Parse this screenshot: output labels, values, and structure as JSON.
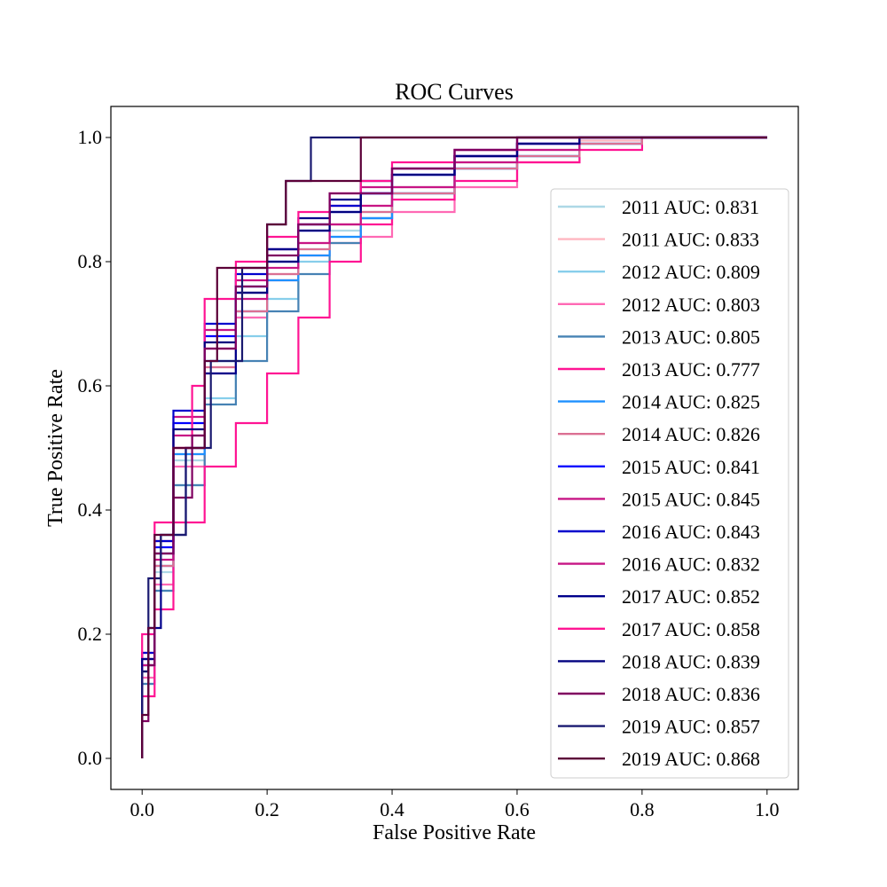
{
  "chart_data": {
    "type": "line",
    "title": "ROC Curves",
    "xlabel": "False Positive Rate",
    "ylabel": "True Positive Rate",
    "xlim": [
      -0.05,
      1.05
    ],
    "ylim": [
      -0.05,
      1.05
    ],
    "xticks": [
      "0.0",
      "0.2",
      "0.4",
      "0.6",
      "0.8",
      "1.0"
    ],
    "yticks": [
      "0.0",
      "0.2",
      "0.4",
      "0.6",
      "0.8",
      "1.0"
    ],
    "grid": false,
    "legend_position": "lower right",
    "series": [
      {
        "name": "2011 AUC: 0.831",
        "color": "#add8e6",
        "x": [
          0,
          0.02,
          0.05,
          0.1,
          0.15,
          0.2,
          0.25,
          0.3,
          0.35,
          0.4,
          0.5,
          0.6,
          0.7,
          0.8,
          1.0
        ],
        "y": [
          0,
          0.15,
          0.3,
          0.48,
          0.62,
          0.71,
          0.77,
          0.82,
          0.85,
          0.88,
          0.92,
          0.96,
          0.98,
          0.995,
          1.0
        ]
      },
      {
        "name": "2011 AUC: 0.833",
        "color": "#ffb6c1",
        "x": [
          0,
          0.02,
          0.05,
          0.1,
          0.15,
          0.2,
          0.25,
          0.3,
          0.35,
          0.4,
          0.5,
          0.6,
          0.7,
          0.8,
          1.0
        ],
        "y": [
          0,
          0.16,
          0.31,
          0.49,
          0.63,
          0.72,
          0.78,
          0.83,
          0.86,
          0.89,
          0.92,
          0.96,
          0.98,
          0.995,
          1.0
        ]
      },
      {
        "name": "2012 AUC: 0.809",
        "color": "#87ceeb",
        "x": [
          0,
          0.02,
          0.05,
          0.1,
          0.15,
          0.2,
          0.25,
          0.3,
          0.35,
          0.4,
          0.5,
          0.6,
          0.7,
          0.8,
          1.0
        ],
        "y": [
          0,
          0.12,
          0.27,
          0.44,
          0.58,
          0.68,
          0.74,
          0.8,
          0.84,
          0.87,
          0.91,
          0.95,
          0.97,
          0.99,
          1.0
        ]
      },
      {
        "name": "2012 AUC: 0.803",
        "color": "#ff69b4",
        "x": [
          0,
          0.02,
          0.05,
          0.1,
          0.15,
          0.2,
          0.25,
          0.3,
          0.35,
          0.4,
          0.5,
          0.6,
          0.7,
          0.8,
          1.0
        ],
        "y": [
          0,
          0.13,
          0.28,
          0.47,
          0.62,
          0.71,
          0.77,
          0.81,
          0.83,
          0.84,
          0.88,
          0.92,
          0.96,
          0.99,
          1.0
        ]
      },
      {
        "name": "2013 AUC: 0.805",
        "color": "#4682b4",
        "x": [
          0,
          0.02,
          0.05,
          0.1,
          0.15,
          0.2,
          0.25,
          0.3,
          0.35,
          0.4,
          0.5,
          0.6,
          0.7,
          0.8,
          1.0
        ],
        "y": [
          0,
          0.12,
          0.27,
          0.44,
          0.57,
          0.64,
          0.72,
          0.78,
          0.83,
          0.87,
          0.91,
          0.95,
          0.97,
          0.99,
          1.0
        ]
      },
      {
        "name": "2013 AUC: 0.777",
        "color": "#ff1493",
        "x": [
          0,
          0.02,
          0.05,
          0.1,
          0.15,
          0.2,
          0.25,
          0.3,
          0.35,
          0.4,
          0.5,
          0.6,
          0.7,
          0.8,
          0.92,
          1.0
        ],
        "y": [
          0,
          0.1,
          0.24,
          0.38,
          0.47,
          0.54,
          0.62,
          0.71,
          0.8,
          0.86,
          0.9,
          0.93,
          0.96,
          0.98,
          1.0,
          1.0
        ]
      },
      {
        "name": "2014 AUC: 0.825",
        "color": "#1e90ff",
        "x": [
          0,
          0.02,
          0.05,
          0.1,
          0.15,
          0.2,
          0.25,
          0.3,
          0.35,
          0.4,
          0.5,
          0.6,
          0.7,
          0.8,
          1.0
        ],
        "y": [
          0,
          0.15,
          0.31,
          0.49,
          0.64,
          0.72,
          0.77,
          0.81,
          0.84,
          0.87,
          0.91,
          0.95,
          0.97,
          0.99,
          1.0
        ]
      },
      {
        "name": "2014 AUC: 0.826",
        "color": "#db7093",
        "x": [
          0,
          0.02,
          0.05,
          0.1,
          0.15,
          0.2,
          0.25,
          0.3,
          0.35,
          0.4,
          0.5,
          0.6,
          0.7,
          0.8,
          1.0
        ],
        "y": [
          0,
          0.15,
          0.31,
          0.5,
          0.63,
          0.72,
          0.78,
          0.82,
          0.86,
          0.88,
          0.91,
          0.95,
          0.97,
          0.99,
          1.0
        ]
      },
      {
        "name": "2015 AUC: 0.841",
        "color": "#0000ff",
        "x": [
          0,
          0.02,
          0.05,
          0.1,
          0.15,
          0.2,
          0.25,
          0.3,
          0.35,
          0.4,
          0.5,
          0.6,
          0.7,
          0.8,
          1.0
        ],
        "y": [
          0,
          0.16,
          0.34,
          0.54,
          0.68,
          0.76,
          0.8,
          0.85,
          0.88,
          0.91,
          0.94,
          0.97,
          0.99,
          1.0,
          1.0
        ]
      },
      {
        "name": "2015 AUC: 0.845",
        "color": "#c71585",
        "x": [
          0,
          0.02,
          0.05,
          0.1,
          0.15,
          0.2,
          0.25,
          0.3,
          0.35,
          0.4,
          0.5,
          0.6,
          0.7,
          0.8,
          1.0
        ],
        "y": [
          0,
          0.17,
          0.35,
          0.55,
          0.69,
          0.77,
          0.82,
          0.86,
          0.89,
          0.92,
          0.95,
          0.97,
          0.99,
          1.0,
          1.0
        ]
      },
      {
        "name": "2016 AUC: 0.843",
        "color": "#0000cd",
        "x": [
          0,
          0.02,
          0.05,
          0.1,
          0.15,
          0.2,
          0.25,
          0.3,
          0.35,
          0.4,
          0.5,
          0.6,
          0.7,
          0.8,
          1.0
        ],
        "y": [
          0,
          0.17,
          0.35,
          0.56,
          0.7,
          0.78,
          0.82,
          0.86,
          0.89,
          0.91,
          0.94,
          0.97,
          0.99,
          1.0,
          1.0
        ]
      },
      {
        "name": "2016 AUC: 0.832",
        "color": "#c71585",
        "x": [
          0,
          0.02,
          0.05,
          0.1,
          0.15,
          0.2,
          0.25,
          0.3,
          0.35,
          0.4,
          0.5,
          0.6,
          0.7,
          0.8,
          1.0
        ],
        "y": [
          0,
          0.15,
          0.32,
          0.52,
          0.66,
          0.74,
          0.79,
          0.83,
          0.86,
          0.89,
          0.92,
          0.96,
          0.98,
          1.0,
          1.0
        ]
      },
      {
        "name": "2017 AUC: 0.852",
        "color": "#00008b",
        "x": [
          0,
          0.01,
          0.03,
          0.07,
          0.1,
          0.15,
          0.2,
          0.25,
          0.3,
          0.35,
          0.4,
          0.5,
          0.6,
          0.7,
          0.8,
          1.0
        ],
        "y": [
          0,
          0.14,
          0.21,
          0.36,
          0.5,
          0.62,
          0.75,
          0.82,
          0.87,
          0.9,
          0.93,
          0.95,
          0.98,
          1.0,
          1.0,
          1.0
        ]
      },
      {
        "name": "2017 AUC: 0.858",
        "color": "#ff1493",
        "x": [
          0,
          0.02,
          0.05,
          0.08,
          0.1,
          0.15,
          0.2,
          0.25,
          0.3,
          0.35,
          0.4,
          0.5,
          0.6,
          0.7,
          0.8,
          1.0
        ],
        "y": [
          0,
          0.2,
          0.38,
          0.5,
          0.6,
          0.74,
          0.8,
          0.84,
          0.88,
          0.91,
          0.93,
          0.96,
          0.98,
          1.0,
          1.0,
          1.0
        ]
      },
      {
        "name": "2018 AUC: 0.839",
        "color": "#000080",
        "x": [
          0,
          0.02,
          0.05,
          0.1,
          0.15,
          0.2,
          0.25,
          0.3,
          0.35,
          0.4,
          0.5,
          0.6,
          0.7,
          0.8,
          1.0
        ],
        "y": [
          0,
          0.16,
          0.33,
          0.53,
          0.67,
          0.75,
          0.8,
          0.85,
          0.88,
          0.91,
          0.94,
          0.97,
          0.99,
          1.0,
          1.0
        ]
      },
      {
        "name": "2018 AUC: 0.836",
        "color": "#800060",
        "x": [
          0,
          0.01,
          0.02,
          0.05,
          0.08,
          0.1,
          0.15,
          0.2,
          0.25,
          0.3,
          0.4,
          0.5,
          0.6,
          0.7,
          0.8,
          1.0
        ],
        "y": [
          0,
          0.06,
          0.15,
          0.33,
          0.42,
          0.52,
          0.66,
          0.76,
          0.81,
          0.86,
          0.91,
          0.95,
          0.98,
          1.0,
          1.0,
          1.0
        ]
      },
      {
        "name": "2019 AUC: 0.857",
        "color": "#191970",
        "x": [
          0,
          0.01,
          0.03,
          0.07,
          0.11,
          0.16,
          0.2,
          0.23,
          0.27,
          0.33,
          0.41,
          1.0
        ],
        "y": [
          0,
          0.14,
          0.29,
          0.36,
          0.5,
          0.64,
          0.79,
          0.86,
          0.93,
          1.0,
          1.0,
          1.0
        ]
      },
      {
        "name": "2019 AUC: 0.868",
        "color": "#5c0038",
        "x": [
          0,
          0.01,
          0.02,
          0.03,
          0.05,
          0.08,
          0.1,
          0.12,
          0.16,
          0.2,
          0.23,
          0.26,
          0.3,
          0.35,
          0.41,
          0.6,
          1.0
        ],
        "y": [
          0,
          0.07,
          0.21,
          0.36,
          0.36,
          0.5,
          0.5,
          0.64,
          0.79,
          0.79,
          0.86,
          0.93,
          0.93,
          0.93,
          1.0,
          1.0,
          1.0
        ]
      }
    ]
  }
}
